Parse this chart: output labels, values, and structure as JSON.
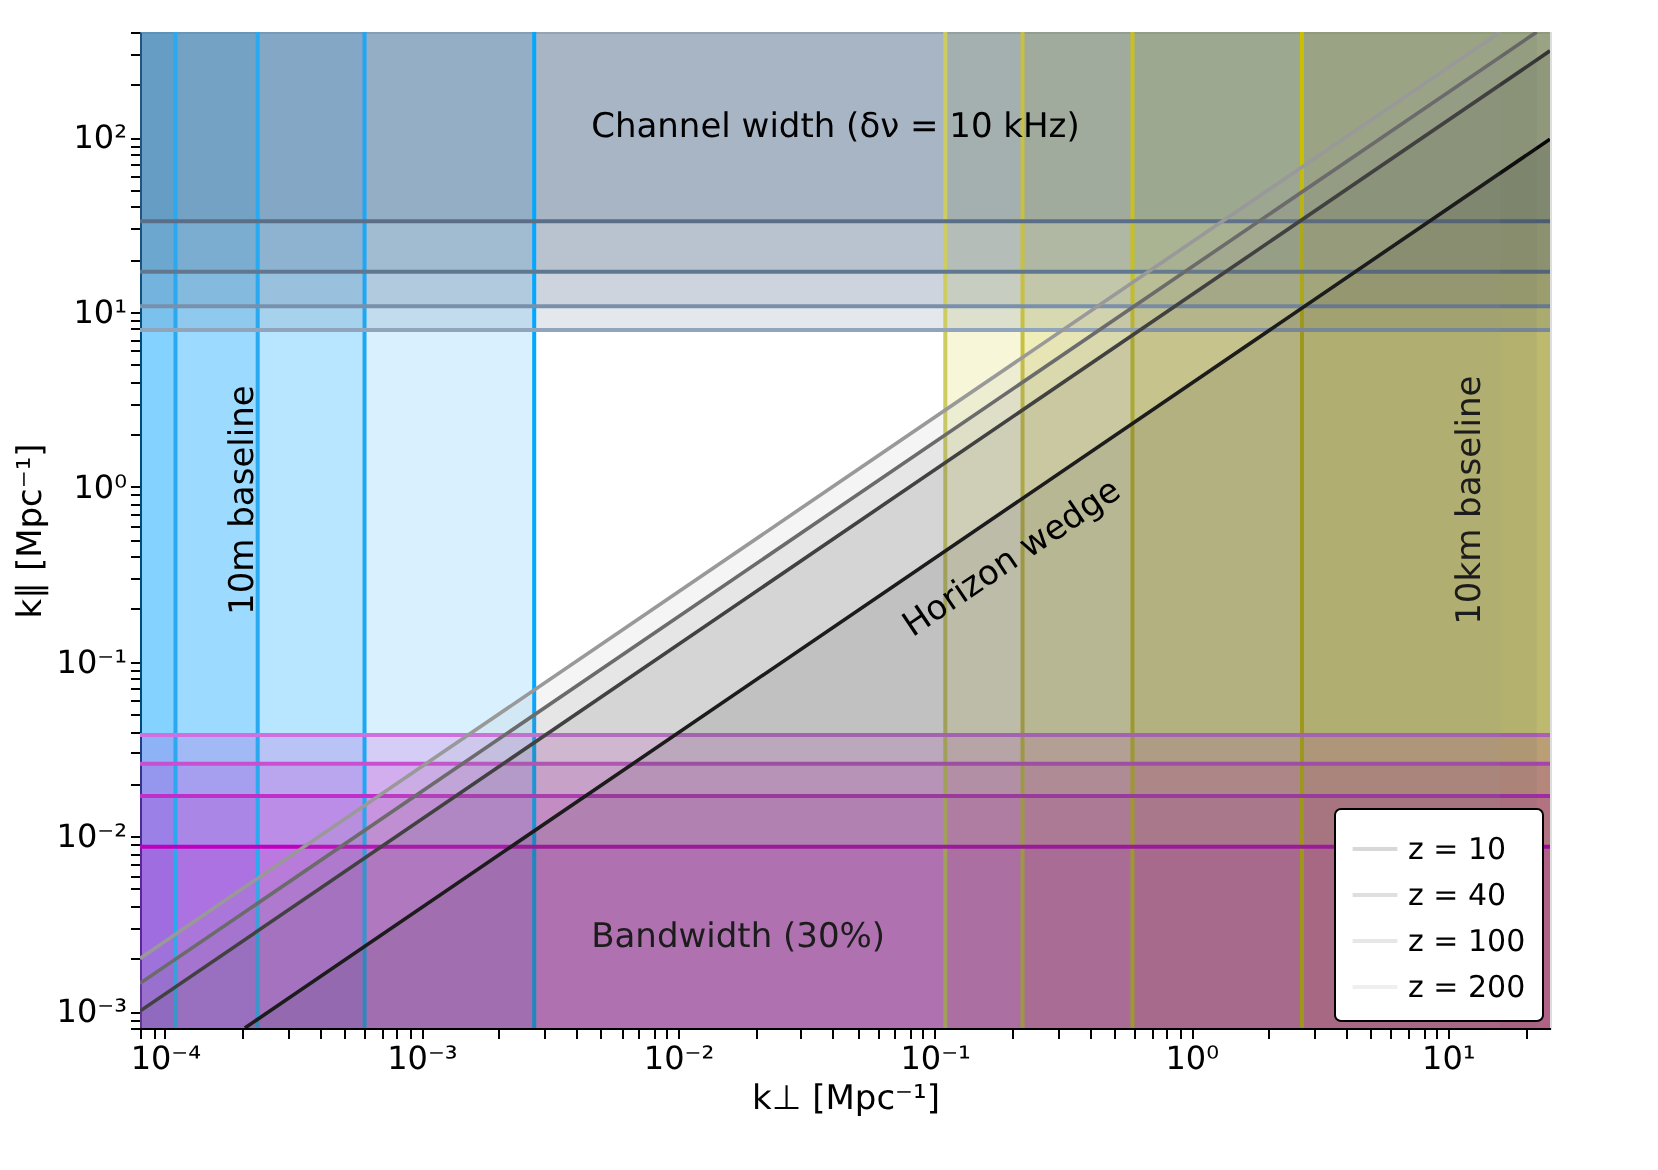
{
  "chart_data": {
    "type": "area",
    "xlabel": "k⊥ [Mpc⁻¹]",
    "ylabel": "k∥ [Mpc⁻¹]",
    "log": "xy",
    "legend": "bottom right",
    "grid": false,
    "xlim": [
      8e-05,
      25
    ],
    "ylim": [
      0.0008,
      400
    ],
    "xticks": [
      {
        "value": 8e-05,
        "label": null
      },
      {
        "value": 9e-05,
        "label": null
      },
      {
        "value": 0.0001,
        "label": "10⁻⁴"
      },
      {
        "value": 0.0002,
        "label": null
      },
      {
        "value": 0.0003,
        "label": null
      },
      {
        "value": 0.0004,
        "label": null
      },
      {
        "value": 0.0005,
        "label": null
      },
      {
        "value": 0.0006,
        "label": null
      },
      {
        "value": 0.0007,
        "label": null
      },
      {
        "value": 0.0008,
        "label": null
      },
      {
        "value": 0.0009,
        "label": null
      },
      {
        "value": 0.001,
        "label": "10⁻³"
      },
      {
        "value": 0.002,
        "label": null
      },
      {
        "value": 0.003,
        "label": null
      },
      {
        "value": 0.004,
        "label": null
      },
      {
        "value": 0.005,
        "label": null
      },
      {
        "value": 0.006,
        "label": null
      },
      {
        "value": 0.007,
        "label": null
      },
      {
        "value": 0.008,
        "label": null
      },
      {
        "value": 0.009,
        "label": null
      },
      {
        "value": 0.01,
        "label": "10⁻²"
      },
      {
        "value": 0.02,
        "label": null
      },
      {
        "value": 0.03,
        "label": null
      },
      {
        "value": 0.04,
        "label": null
      },
      {
        "value": 0.05,
        "label": null
      },
      {
        "value": 0.06,
        "label": null
      },
      {
        "value": 0.07,
        "label": null
      },
      {
        "value": 0.08,
        "label": null
      },
      {
        "value": 0.09,
        "label": null
      },
      {
        "value": 0.1,
        "label": "10⁻¹"
      },
      {
        "value": 0.2,
        "label": null
      },
      {
        "value": 0.3,
        "label": null
      },
      {
        "value": 0.4,
        "label": null
      },
      {
        "value": 0.5,
        "label": null
      },
      {
        "value": 0.6,
        "label": null
      },
      {
        "value": 0.7,
        "label": null
      },
      {
        "value": 0.8,
        "label": null
      },
      {
        "value": 0.9,
        "label": null
      },
      {
        "value": 1,
        "label": "10⁰"
      },
      {
        "value": 2,
        "label": null
      },
      {
        "value": 3,
        "label": null
      },
      {
        "value": 4,
        "label": null
      },
      {
        "value": 5,
        "label": null
      },
      {
        "value": 6,
        "label": null
      },
      {
        "value": 7,
        "label": null
      },
      {
        "value": 8,
        "label": null
      },
      {
        "value": 9,
        "label": null
      },
      {
        "value": 10,
        "label": "10¹"
      },
      {
        "value": 20,
        "label": null
      }
    ],
    "yticks": [
      {
        "value": 0.0008,
        "label": null
      },
      {
        "value": 0.0009,
        "label": null
      },
      {
        "value": 0.001,
        "label": "10⁻³"
      },
      {
        "value": 0.002,
        "label": null
      },
      {
        "value": 0.003,
        "label": null
      },
      {
        "value": 0.004,
        "label": null
      },
      {
        "value": 0.005,
        "label": null
      },
      {
        "value": 0.006,
        "label": null
      },
      {
        "value": 0.007,
        "label": null
      },
      {
        "value": 0.008,
        "label": null
      },
      {
        "value": 0.009,
        "label": null
      },
      {
        "value": 0.01,
        "label": "10⁻²"
      },
      {
        "value": 0.02,
        "label": null
      },
      {
        "value": 0.03,
        "label": null
      },
      {
        "value": 0.04,
        "label": null
      },
      {
        "value": 0.05,
        "label": null
      },
      {
        "value": 0.06,
        "label": null
      },
      {
        "value": 0.07,
        "label": null
      },
      {
        "value": 0.08,
        "label": null
      },
      {
        "value": 0.09,
        "label": null
      },
      {
        "value": 0.1,
        "label": "10⁻¹"
      },
      {
        "value": 0.2,
        "label": null
      },
      {
        "value": 0.3,
        "label": null
      },
      {
        "value": 0.4,
        "label": null
      },
      {
        "value": 0.5,
        "label": null
      },
      {
        "value": 0.6,
        "label": null
      },
      {
        "value": 0.7,
        "label": null
      },
      {
        "value": 0.8,
        "label": null
      },
      {
        "value": 0.9,
        "label": null
      },
      {
        "value": 1,
        "label": "10⁰"
      },
      {
        "value": 2,
        "label": null
      },
      {
        "value": 3,
        "label": null
      },
      {
        "value": 4,
        "label": null
      },
      {
        "value": 5,
        "label": null
      },
      {
        "value": 6,
        "label": null
      },
      {
        "value": 7,
        "label": null
      },
      {
        "value": 8,
        "label": null
      },
      {
        "value": 9,
        "label": null
      },
      {
        "value": 10,
        "label": "10¹"
      },
      {
        "value": 20,
        "label": null
      },
      {
        "value": 30,
        "label": null
      },
      {
        "value": 40,
        "label": null
      },
      {
        "value": 50,
        "label": null
      },
      {
        "value": 60,
        "label": null
      },
      {
        "value": 70,
        "label": null
      },
      {
        "value": 80,
        "label": null
      },
      {
        "value": 90,
        "label": null
      },
      {
        "value": 100,
        "label": "10²"
      },
      {
        "value": 200,
        "label": null
      },
      {
        "value": 300,
        "label": null
      },
      {
        "value": 400,
        "label": null
      }
    ],
    "series": [
      {
        "name": "z = 10",
        "color": "#000000",
        "x": [
          0.000205,
          25
        ],
        "values": [
          0.0008,
          97.5
        ]
      },
      {
        "name": "z = 40",
        "color": "#333333",
        "x": [
          8e-05,
          25
        ],
        "values": [
          0.001,
          312
        ]
      },
      {
        "name": "z = 100",
        "color": "#666666",
        "x": [
          8e-05,
          22.2
        ],
        "values": [
          0.00144,
          400
        ]
      },
      {
        "name": "z = 200",
        "color": "#999999",
        "x": [
          8e-05,
          16
        ],
        "values": [
          0.002,
          400
        ]
      }
    ],
    "bands": [
      {
        "axis": "x",
        "from": 8e-05,
        "to": 0.00011,
        "color": "#00a0ff"
      },
      {
        "axis": "x",
        "from": 8e-05,
        "to": 0.00023,
        "color": "#00a0ff",
        "label": "10m baseline"
      },
      {
        "axis": "x",
        "from": 8e-05,
        "to": 0.0006,
        "color": "#00a0ff"
      },
      {
        "axis": "x",
        "from": 8e-05,
        "to": 0.00275,
        "color": "#00a0ff"
      },
      {
        "axis": "x",
        "from": 0.11,
        "to": 25,
        "color": "#c8c000"
      },
      {
        "axis": "x",
        "from": 0.22,
        "to": 25,
        "color": "#c8c000"
      },
      {
        "axis": "x",
        "from": 0.59,
        "to": 25,
        "color": "#c8c000"
      },
      {
        "axis": "x",
        "from": 2.7,
        "to": 25,
        "color": "#c8c000",
        "label": "10km baseline"
      },
      {
        "axis": "y",
        "from": 7.9,
        "to": 400,
        "color": "#4a6488"
      },
      {
        "axis": "y",
        "from": 10.8,
        "to": 400,
        "color": "#4a6488"
      },
      {
        "axis": "y",
        "from": 17,
        "to": 400,
        "color": "#4a6488"
      },
      {
        "axis": "y",
        "from": 33,
        "to": 400,
        "color": "#4a6488",
        "label": "Channel width (δν = 10 kHz)"
      },
      {
        "axis": "y",
        "from": 0.0008,
        "to": 0.038,
        "color": "#c000c0"
      },
      {
        "axis": "y",
        "from": 0.0008,
        "to": 0.026,
        "color": "#c000c0"
      },
      {
        "axis": "y",
        "from": 0.0008,
        "to": 0.017,
        "color": "#c000c0"
      },
      {
        "axis": "y",
        "from": 0.0008,
        "to": 0.0087,
        "color": "#c000c0",
        "label": "Bandwidth (30%)"
      }
    ],
    "ref_lines": [
      {
        "axis": "x",
        "value": 0.00011,
        "color": "#2aa8f0"
      },
      {
        "axis": "x",
        "value": 0.00023,
        "color": "#2aa8f0"
      },
      {
        "axis": "x",
        "value": 0.0006,
        "color": "#1ea7f5"
      },
      {
        "axis": "x",
        "value": 0.00275,
        "color": "#00a8ff"
      },
      {
        "axis": "x",
        "value": 0.11,
        "color": "#cccc60"
      },
      {
        "axis": "x",
        "value": 0.22,
        "color": "#c8c040"
      },
      {
        "axis": "x",
        "value": 0.59,
        "color": "#c8c020"
      },
      {
        "axis": "x",
        "value": 2.7,
        "color": "#c8c000"
      },
      {
        "axis": "y",
        "value": 7.9,
        "color": "#90a4bc"
      },
      {
        "axis": "y",
        "value": 10.8,
        "color": "#7890ac"
      },
      {
        "axis": "y",
        "value": 17,
        "color": "#60788f"
      },
      {
        "axis": "y",
        "value": 33,
        "color": "#5a6e88"
      },
      {
        "axis": "y",
        "value": 0.038,
        "color": "#d070e0"
      },
      {
        "axis": "y",
        "value": 0.026,
        "color": "#c850d0"
      },
      {
        "axis": "y",
        "value": 0.017,
        "color": "#c030c8"
      },
      {
        "axis": "y",
        "value": 0.0087,
        "color": "#c000c0"
      }
    ],
    "annotations": [
      {
        "text": "Horizon wedge",
        "x": 0.2,
        "y": 0.39
      }
    ]
  }
}
